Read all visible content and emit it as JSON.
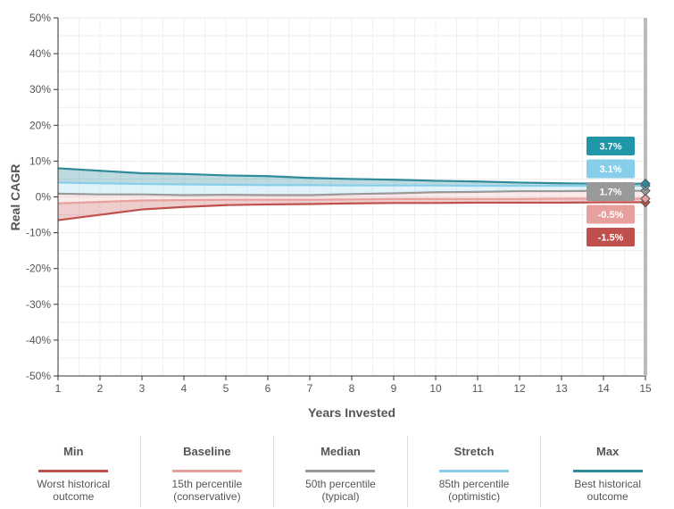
{
  "chart_data": {
    "type": "area",
    "xlabel": "Years Invested",
    "ylabel": "Real CAGR",
    "xlim": [
      1,
      15
    ],
    "ylim": [
      -50,
      50
    ],
    "x_ticks": [
      "1",
      "2",
      "3",
      "4",
      "5",
      "6",
      "7",
      "8",
      "9",
      "10",
      "11",
      "12",
      "13",
      "14",
      "15"
    ],
    "y_ticks": [
      "50%",
      "40%",
      "30%",
      "20%",
      "10%",
      "0%",
      "-10%",
      "-20%",
      "-30%",
      "-40%",
      "-50%"
    ],
    "grid": true,
    "x": [
      1,
      2,
      3,
      4,
      5,
      6,
      7,
      8,
      9,
      10,
      11,
      12,
      13,
      14,
      15
    ],
    "series": [
      {
        "name": "Min",
        "color": "#c0504d",
        "values": [
          -6.5,
          -5.0,
          -3.5,
          -2.8,
          -2.3,
          -2.1,
          -2.0,
          -1.8,
          -1.7,
          -1.7,
          -1.6,
          -1.6,
          -1.6,
          -1.5,
          -1.5
        ]
      },
      {
        "name": "Baseline",
        "color": "#e8a09e",
        "values": [
          -1.8,
          -1.4,
          -1.0,
          -0.9,
          -0.8,
          -0.8,
          -0.8,
          -0.7,
          -0.6,
          -0.6,
          -0.6,
          -0.6,
          -0.5,
          -0.5,
          -0.5
        ]
      },
      {
        "name": "Median",
        "color": "#999999",
        "values": [
          0.9,
          0.7,
          0.7,
          0.5,
          0.6,
          0.5,
          0.5,
          0.8,
          1.0,
          1.3,
          1.4,
          1.6,
          1.6,
          1.7,
          1.7
        ]
      },
      {
        "name": "Stretch",
        "color": "#87ceeb",
        "values": [
          4.0,
          3.8,
          3.6,
          3.5,
          3.4,
          3.3,
          3.3,
          3.2,
          3.2,
          3.2,
          3.1,
          3.1,
          3.1,
          3.1,
          3.1
        ]
      },
      {
        "name": "Max",
        "color": "#2e8b9a",
        "values": [
          8.0,
          7.3,
          6.6,
          6.4,
          6.0,
          5.8,
          5.3,
          5.0,
          4.8,
          4.5,
          4.3,
          4.0,
          3.8,
          3.7,
          3.7
        ]
      }
    ],
    "end_labels": [
      {
        "text": "3.7%",
        "color": "#2196a6"
      },
      {
        "text": "3.1%",
        "color": "#87ceeb"
      },
      {
        "text": "1.7%",
        "color": "#999999"
      },
      {
        "text": "-0.5%",
        "color": "#e8a09e"
      },
      {
        "text": "-1.5%",
        "color": "#c0504d"
      }
    ]
  },
  "legend": [
    {
      "name": "Min",
      "color": "#c0504d",
      "desc1": "Worst historical",
      "desc2": "outcome"
    },
    {
      "name": "Baseline",
      "color": "#e8a09e",
      "desc1": "15th percentile",
      "desc2": "(conservative)"
    },
    {
      "name": "Median",
      "color": "#999999",
      "desc1": "50th percentile",
      "desc2": "(typical)"
    },
    {
      "name": "Stretch",
      "color": "#87ceeb",
      "desc1": "85th percentile",
      "desc2": "(optimistic)"
    },
    {
      "name": "Max",
      "color": "#2e8b9a",
      "desc1": "Best historical",
      "desc2": "outcome"
    }
  ]
}
